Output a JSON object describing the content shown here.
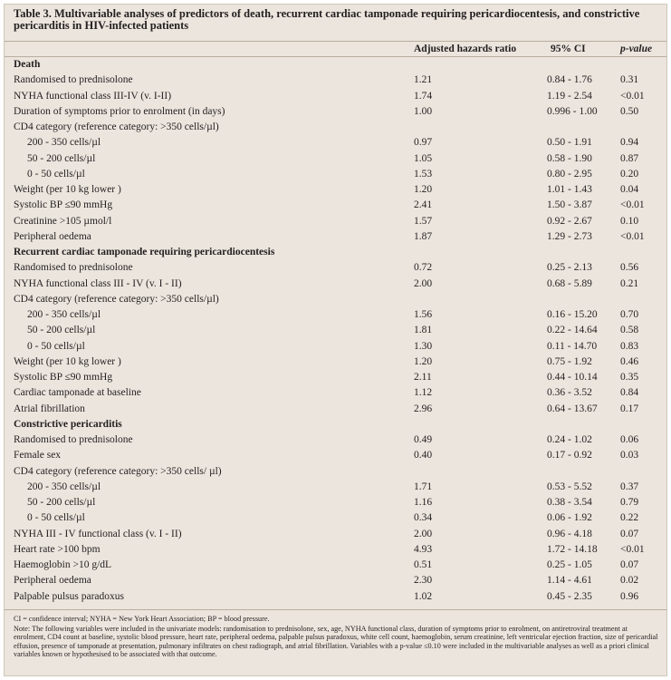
{
  "title": "Table 3. Multivariable analyses of predictors of death, recurrent cardiac tamponade requiring pericardiocentesis, and constrictive pericarditis in HIV-infected patients",
  "headers": {
    "ahr": "Adjusted hazards ratio",
    "ci": "95% CI",
    "p": "p-value"
  },
  "rows": [
    {
      "kind": "section",
      "label": "Death"
    },
    {
      "label": "Randomised to prednisolone",
      "ahr": "1.21",
      "ci": "0.84 - 1.76",
      "p": "0.31"
    },
    {
      "label": "NYHA functional class III-IV (v. I-II)",
      "ahr": "1.74",
      "ci": "1.19 - 2.54",
      "p": "<0.01"
    },
    {
      "label": "Duration of symptoms prior to enrolment (in days)",
      "ahr": "1.00",
      "ci": "0.996 - 1.00",
      "p": "0.50"
    },
    {
      "label": "CD4 category (reference category: >350 cells/µl)"
    },
    {
      "kind": "indent",
      "label": "200 - 350 cells/µl",
      "ahr": "0.97",
      "ci": "0.50 - 1.91",
      "p": "0.94"
    },
    {
      "kind": "indent",
      "label": "50 - 200 cells/µl",
      "ahr": "1.05",
      "ci": "0.58 - 1.90",
      "p": "0.87"
    },
    {
      "kind": "indent",
      "label": "0 - 50 cells/µl",
      "ahr": "1.53",
      "ci": "0.80 - 2.95",
      "p": "0.20"
    },
    {
      "label": "Weight (per 10 kg lower )",
      "ahr": "1.20",
      "ci": "1.01 - 1.43",
      "p": "0.04"
    },
    {
      "label": "Systolic BP ≤90 mmHg",
      "ahr": "2.41",
      "ci": "1.50 - 3.87",
      "p": "<0.01"
    },
    {
      "label": "Creatinine >105 µmol/l",
      "ahr": "1.57",
      "ci": "0.92 - 2.67",
      "p": "0.10"
    },
    {
      "label": "Peripheral oedema",
      "ahr": "1.87",
      "ci": "1.29 - 2.73",
      "p": "<0.01"
    },
    {
      "kind": "section",
      "label": "Recurrent cardiac tamponade requiring pericardiocentesis"
    },
    {
      "label": "Randomised to prednisolone",
      "ahr": "0.72",
      "ci": "0.25 - 2.13",
      "p": "0.56"
    },
    {
      "label": "NYHA functional class III - IV (v. I - II)",
      "ahr": "2.00",
      "ci": "0.68 - 5.89",
      "p": "0.21"
    },
    {
      "label": "CD4 category (reference category: >350 cells/µl)"
    },
    {
      "kind": "indent",
      "label": "200 - 350 cells/µl",
      "ahr": "1.56",
      "ci": "0.16 - 15.20",
      "p": "0.70"
    },
    {
      "kind": "indent",
      "label": "50 - 200 cells/µl",
      "ahr": "1.81",
      "ci": "0.22 - 14.64",
      "p": "0.58"
    },
    {
      "kind": "indent",
      "label": "0 - 50 cells/µl",
      "ahr": "1.30",
      "ci": "0.11 - 14.70",
      "p": "0.83"
    },
    {
      "label": "Weight (per 10 kg lower )",
      "ahr": "1.20",
      "ci": "0.75 - 1.92",
      "p": "0.46"
    },
    {
      "label": "Systolic BP ≤90 mmHg",
      "ahr": "2.11",
      "ci": "0.44 - 10.14",
      "p": "0.35"
    },
    {
      "label": "Cardiac tamponade at baseline",
      "ahr": "1.12",
      "ci": "0.36 - 3.52",
      "p": "0.84"
    },
    {
      "label": "Atrial fibrillation",
      "ahr": "2.96",
      "ci": "0.64 - 13.67",
      "p": "0.17"
    },
    {
      "kind": "section",
      "label": "Constrictive pericarditis"
    },
    {
      "label": "Randomised to prednisolone",
      "ahr": "0.49",
      "ci": "0.24 - 1.02",
      "p": "0.06"
    },
    {
      "label": "Female sex",
      "ahr": "0.40",
      "ci": "0.17 - 0.92",
      "p": "0.03"
    },
    {
      "label": "CD4 category (reference category: >350 cells/ µl)"
    },
    {
      "kind": "indent",
      "label": "200 - 350 cells/µl",
      "ahr": "1.71",
      "ci": "0.53 - 5.52",
      "p": "0.37"
    },
    {
      "kind": "indent",
      "label": "50 - 200 cells/µl",
      "ahr": "1.16",
      "ci": "0.38 - 3.54",
      "p": "0.79"
    },
    {
      "kind": "indent",
      "label": "0 - 50 cells/µl",
      "ahr": "0.34",
      "ci": "0.06 - 1.92",
      "p": "0.22"
    },
    {
      "label": "NYHA III - IV functional class (v. I - II)",
      "ahr": "2.00",
      "ci": "0.96 - 4.18",
      "p": "0.07"
    },
    {
      "label": "Heart rate >100 bpm",
      "ahr": "4.93",
      "ci": "1.72 - 14.18",
      "p": "<0.01"
    },
    {
      "label": "Haemoglobin >10 g/dL",
      "ahr": "0.51",
      "ci": "0.25 - 1.05",
      "p": "0.07"
    },
    {
      "label": "Peripheral oedema",
      "ahr": "2.30",
      "ci": "1.14 - 4.61",
      "p": "0.02"
    },
    {
      "label": "Palpable pulsus paradoxus",
      "ahr": "1.02",
      "ci": "0.45 - 2.35",
      "p": "0.96"
    }
  ],
  "footnotes": {
    "abbreviations": "CI = confidence interval; NYHA = New York Heart Association; BP = blood pressure.",
    "note": "Note: The following variables were included in the univariate models: randomisation to prednisolone, sex, age, NYHA functional class, duration of symptoms prior to enrolment, on antiretroviral treatment at enrolment, CD4 count at baseline, systolic blood pressure, heart rate, peripheral oedema, palpable pulsus paradoxus, white cell count, haemoglobin, serum creatinine, left ventricular ejection fraction, size of pericardial effusion, presence of tamponade at presentation, pulmonary infiltrates on chest radiograph, and atrial fibrillation. Variables with a p-value ≤0.10 were included in the multivariable analyses as well as a priori clinical variables known or hypothesised to be associated with that outcome."
  }
}
